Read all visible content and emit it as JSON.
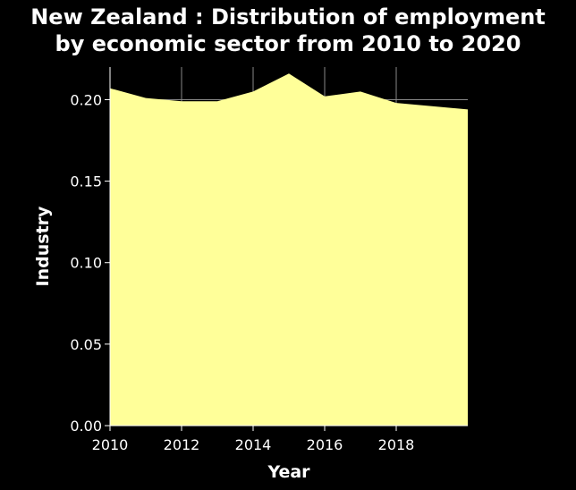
{
  "chart_data": {
    "type": "area",
    "title_line1": "New Zealand : Distribution of employment",
    "title_line2": "by economic sector from 2010 to 2020",
    "xlabel": "Year",
    "ylabel": "Industry",
    "x": [
      2010,
      2011,
      2012,
      2013,
      2014,
      2015,
      2016,
      2017,
      2018,
      2019,
      2020
    ],
    "series": [
      {
        "values": [
          0.207,
          0.201,
          0.199,
          0.199,
          0.205,
          0.216,
          0.202,
          0.205,
          0.198,
          0.196,
          0.194
        ]
      }
    ],
    "xlim": [
      2010,
      2020
    ],
    "ylim": [
      0,
      0.22
    ],
    "x_ticks": [
      2010,
      2012,
      2014,
      2016,
      2018
    ],
    "y_ticks": [
      "0.00",
      "0.05",
      "0.10",
      "0.15",
      "0.20"
    ],
    "grid": true,
    "fill_color": "#ffff99",
    "background_color": "#000000",
    "grid_color": "#888888"
  }
}
